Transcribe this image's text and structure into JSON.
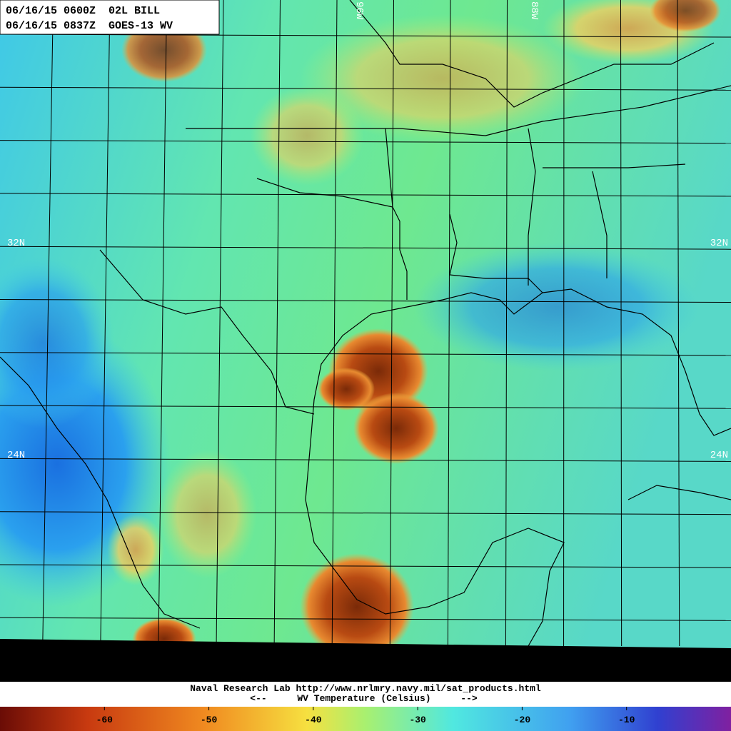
{
  "header": {
    "lines": [
      "06/16/15 0600Z  02L BILL",
      "06/16/15 0837Z  GOES-13 WV"
    ]
  },
  "grid_labels": {
    "lat_left": [
      "32N",
      "24N"
    ],
    "lat_right": [
      "32N",
      "24N"
    ],
    "lon_top": [
      "96W",
      "88W"
    ]
  },
  "footer": {
    "credit": "Naval Research Lab http://www.nrlmry.navy.mil/sat_products.html",
    "arrow_left": "<--",
    "scale_title": "WV Temperature (Celsius)",
    "arrow_right": "-->"
  },
  "colorbar": {
    "lim": [
      -70,
      0
    ],
    "ticks": [
      -60,
      -50,
      -40,
      -30,
      -20,
      -10
    ]
  }
}
